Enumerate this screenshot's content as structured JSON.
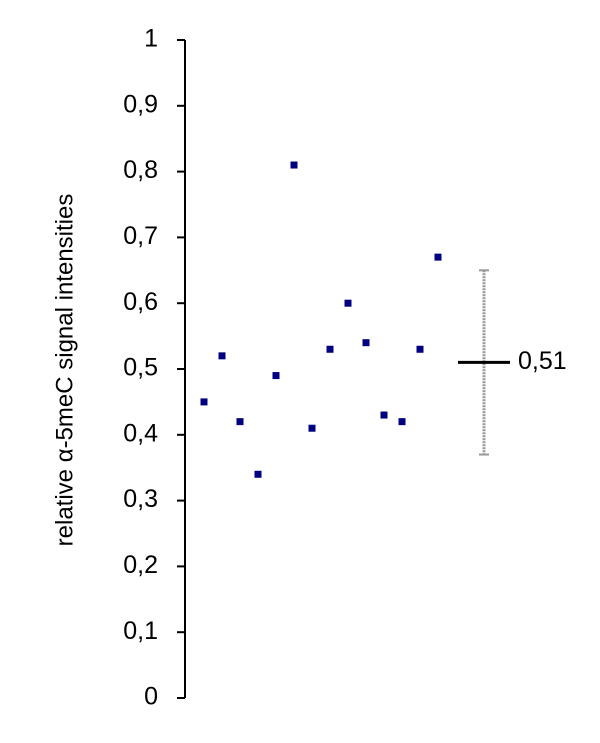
{
  "chart_data": {
    "type": "scatter",
    "y_label": "relative α-5meC signal intensities",
    "categories": [
      null,
      null,
      null,
      null,
      null,
      null,
      null,
      null,
      null,
      null,
      null,
      null,
      null,
      null
    ],
    "values": [
      0.45,
      0.52,
      0.42,
      0.34,
      0.49,
      0.81,
      0.41,
      0.53,
      0.6,
      0.54,
      0.43,
      0.42,
      0.53,
      0.67
    ],
    "color": "#000080",
    "summary": {
      "values": [
        0.51
      ],
      "value_labels": [
        "0,51"
      ],
      "errors": [
        0.14
      ],
      "color": "#000000",
      "error_color": "#999999"
    },
    "ylim": [
      0,
      1
    ],
    "yticks": [
      0,
      {
        "value": 0.1,
        "label": "0,1"
      },
      {
        "value": 0.2,
        "label": "0,2"
      },
      {
        "value": 0.3,
        "label": "0,3"
      },
      {
        "value": 0.4,
        "label": "0,4"
      },
      {
        "value": 0.5,
        "label": "0,5"
      },
      {
        "value": 0.6,
        "label": "0,6"
      },
      {
        "value": 0.7,
        "label": "0,7"
      },
      {
        "value": 0.8,
        "label": "0,8"
      },
      {
        "value": 0.9,
        "label": "0,9"
      },
      1
    ],
    "grid": false
  }
}
